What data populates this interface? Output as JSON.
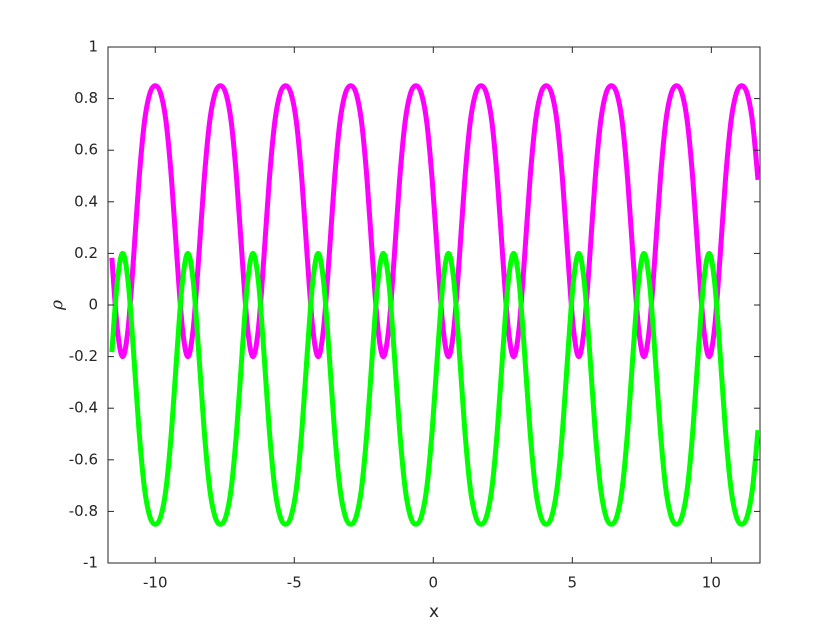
{
  "chart_data": {
    "type": "line",
    "xlabel": "x",
    "ylabel": "ρ",
    "x": [
      -11.562,
      -11.367,
      -11.172,
      -10.976,
      -10.781,
      -10.586,
      -10.391,
      -10.195,
      -10,
      -9.805,
      -9.609,
      -9.414,
      -9.219,
      -9.024,
      -8.828,
      -8.633,
      -8.438,
      -8.242,
      -8.047,
      -7.852,
      -7.656,
      -7.461,
      -7.266,
      -7.071,
      -6.875,
      -6.68,
      -6.485,
      -6.289,
      -6.094,
      -5.899,
      -5.703,
      -5.508,
      -5.313,
      -5.118,
      -4.922,
      -4.727,
      -4.532,
      -4.336,
      -4.141,
      -3.946,
      -3.75,
      -3.555,
      -3.36,
      -3.164,
      -2.969,
      -2.774,
      -2.579,
      -2.383,
      -2.188,
      -1.993,
      -1.797,
      -1.602,
      -1.407,
      -1.212,
      -1.016,
      -0.821,
      -0.626,
      -0.43,
      -0.235,
      -0.04,
      0.156,
      0.351,
      0.546,
      0.742,
      0.937,
      1.132,
      1.327,
      1.523,
      1.718,
      1.913,
      2.109,
      2.304,
      2.499,
      2.695,
      2.89,
      3.085,
      3.28,
      3.476,
      3.671,
      3.866,
      4.062,
      4.257,
      4.452,
      4.648,
      4.843,
      5.038,
      5.233,
      5.429,
      5.624,
      5.819,
      6.015,
      6.21,
      6.405,
      6.601,
      6.796,
      6.991,
      7.186,
      7.382,
      7.577,
      7.772,
      7.968,
      8.163,
      8.358,
      8.554,
      8.749,
      8.944,
      9.139,
      9.335,
      9.53,
      9.725,
      9.921,
      10.116,
      10.311,
      10.507,
      10.702,
      10.897,
      11.092,
      11.288,
      11.483,
      11.678
    ],
    "series": [
      {
        "color": "#ff00ff",
        "values": [
          0.183,
          -0.09,
          -0.2,
          -0.09,
          0.183,
          0.485,
          0.708,
          0.82,
          0.85,
          0.82,
          0.708,
          0.485,
          0.183,
          -0.09,
          -0.2,
          -0.09,
          0.183,
          0.485,
          0.708,
          0.82,
          0.85,
          0.82,
          0.708,
          0.485,
          0.183,
          -0.09,
          -0.2,
          -0.09,
          0.183,
          0.485,
          0.708,
          0.82,
          0.85,
          0.82,
          0.708,
          0.485,
          0.183,
          -0.09,
          -0.2,
          -0.09,
          0.183,
          0.485,
          0.708,
          0.82,
          0.85,
          0.82,
          0.708,
          0.485,
          0.183,
          -0.09,
          -0.2,
          -0.09,
          0.183,
          0.485,
          0.708,
          0.82,
          0.85,
          0.82,
          0.708,
          0.485,
          0.183,
          -0.09,
          -0.2,
          -0.09,
          0.183,
          0.485,
          0.708,
          0.82,
          0.85,
          0.82,
          0.708,
          0.485,
          0.183,
          -0.09,
          -0.2,
          -0.09,
          0.183,
          0.485,
          0.708,
          0.82,
          0.85,
          0.82,
          0.708,
          0.485,
          0.183,
          -0.09,
          -0.2,
          -0.09,
          0.183,
          0.485,
          0.708,
          0.82,
          0.85,
          0.82,
          0.708,
          0.485,
          0.183,
          -0.09,
          -0.2,
          -0.09,
          0.183,
          0.485,
          0.708,
          0.82,
          0.85,
          0.82,
          0.708,
          0.485,
          0.183,
          -0.09,
          -0.2,
          -0.09,
          0.183,
          0.485,
          0.708,
          0.82,
          0.85,
          0.82,
          0.708,
          0.485
        ]
      },
      {
        "color": "#00ff00",
        "values": [
          -0.183,
          0.09,
          0.2,
          0.09,
          -0.183,
          -0.485,
          -0.708,
          -0.82,
          -0.85,
          -0.82,
          -0.708,
          -0.485,
          -0.183,
          0.09,
          0.2,
          0.09,
          -0.183,
          -0.485,
          -0.708,
          -0.82,
          -0.85,
          -0.82,
          -0.708,
          -0.485,
          -0.183,
          0.09,
          0.2,
          0.09,
          -0.183,
          -0.485,
          -0.708,
          -0.82,
          -0.85,
          -0.82,
          -0.708,
          -0.485,
          -0.183,
          0.09,
          0.2,
          0.09,
          -0.183,
          -0.485,
          -0.708,
          -0.82,
          -0.85,
          -0.82,
          -0.708,
          -0.485,
          -0.183,
          0.09,
          0.2,
          0.09,
          -0.183,
          -0.485,
          -0.708,
          -0.82,
          -0.85,
          -0.82,
          -0.708,
          -0.485,
          -0.183,
          0.09,
          0.2,
          0.09,
          -0.183,
          -0.485,
          -0.708,
          -0.82,
          -0.85,
          -0.82,
          -0.708,
          -0.485,
          -0.183,
          0.09,
          0.2,
          0.09,
          -0.183,
          -0.485,
          -0.708,
          -0.82,
          -0.85,
          -0.82,
          -0.708,
          -0.485,
          -0.183,
          0.09,
          0.2,
          0.09,
          -0.183,
          -0.485,
          -0.708,
          -0.82,
          -0.85,
          -0.82,
          -0.708,
          -0.485,
          -0.183,
          0.09,
          0.2,
          0.09,
          -0.183,
          -0.485,
          -0.708,
          -0.82,
          -0.85,
          -0.82,
          -0.708,
          -0.485,
          -0.183,
          0.09,
          0.2,
          0.09,
          -0.183,
          -0.485,
          -0.708,
          -0.82,
          -0.85,
          -0.82,
          -0.708,
          -0.485
        ]
      }
    ],
    "xlim": [
      -11.7,
      11.75
    ],
    "ylim": [
      -1,
      1
    ],
    "xticks": [
      -10,
      -5,
      0,
      5,
      10
    ],
    "yticks": [
      -1,
      -0.8,
      -0.6,
      -0.4,
      -0.2,
      0,
      0.2,
      0.4,
      0.6,
      0.8,
      1
    ],
    "grid": false
  }
}
